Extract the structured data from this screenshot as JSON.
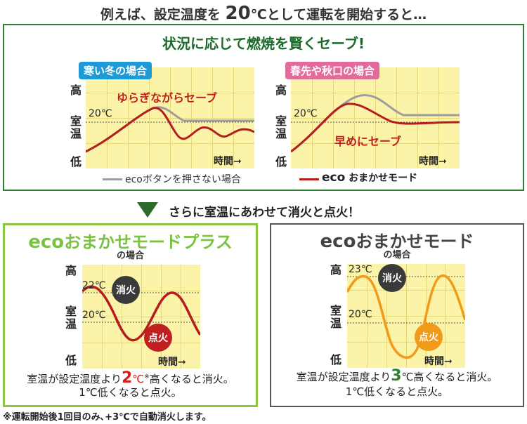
{
  "header": {
    "prefix": "例えば、設定温度を",
    "temp": "20",
    "suffix": "℃として運転を開始すると…"
  },
  "top_panel": {
    "title": "状況に応じて燃焼を賢くセーブ!",
    "left_chart": {
      "badge": "寒い冬の場合",
      "y_high": "高",
      "y_room_1": "室",
      "y_room_2": "温",
      "y_low": "低",
      "temp_label": "20℃",
      "note": "ゆらぎながらセーブ",
      "x_label": "時間➞"
    },
    "right_chart": {
      "badge": "春先や秋口の場合",
      "y_high": "高",
      "y_room_1": "室",
      "y_room_2": "温",
      "y_low": "低",
      "temp_label": "20℃",
      "note": "早めにセーブ",
      "x_label": "時間➞"
    },
    "legend": {
      "gray": "ecoボタンを押さない場合",
      "red_bold": "eco",
      "red_rest": "おまかせモード"
    },
    "colors": {
      "gray_line": "#9e9e9e",
      "red_line": "#b71c1c",
      "plot_bg": "#fbf3a8",
      "badge_left": "#1e9ad6",
      "badge_right": "#e56a9c"
    }
  },
  "transition": {
    "text": "さらに室温にあわせて消火と点火！"
  },
  "plus_panel": {
    "title_eco": "eco",
    "title_rest": "おまかせモードプラス",
    "subtitle": "の場合",
    "y_high": "高",
    "y_room_1": "室",
    "y_room_2": "温",
    "y_low": "低",
    "temp_top": "22℃",
    "temp_set": "20℃",
    "off_label": "消火",
    "on_label": "点火",
    "x_label": "時間➞",
    "note_pre": "室温が設定温度より",
    "note_num": "2",
    "note_unit": "℃",
    "note_mark": "※",
    "note_post": "高くなると消火。",
    "note_line2": "1℃低くなると点火。",
    "colors": {
      "title": "#7cc242",
      "wave": "#b71c1c",
      "num": "#d81b1b"
    }
  },
  "mode_panel": {
    "title_eco": "eco",
    "title_rest": "おまかせモード",
    "subtitle": "の場合",
    "y_high": "高",
    "y_room_1": "室",
    "y_room_2": "温",
    "y_low": "低",
    "temp_top": "23℃",
    "temp_set": "20℃",
    "off_label": "消火",
    "on_label": "点火",
    "x_label": "時間➞",
    "note_pre": "室温が設定温度より",
    "note_num": "3",
    "note_post": "℃高くなると消火。",
    "note_line2": "1℃低くなると点火。",
    "colors": {
      "title": "#444444",
      "wave": "#f29b1a",
      "num": "#2e7d32"
    }
  },
  "footnote": "※運転開始後1回目のみ､+3℃で自動消火します。"
}
